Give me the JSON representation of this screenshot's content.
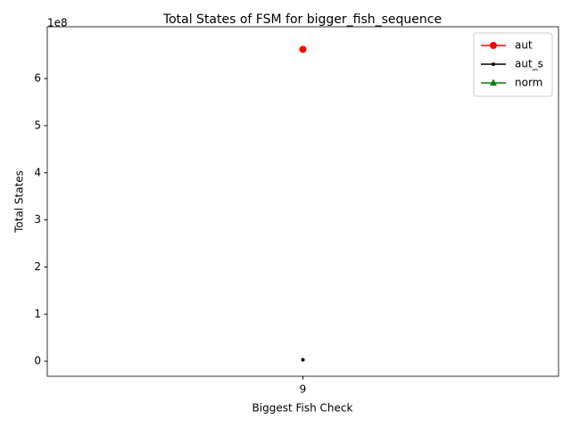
{
  "chart_data": {
    "type": "line",
    "title": "Total States of FSM for bigger_fish_sequence",
    "x_label": "Biggest Fish Check",
    "y_label": "Total States",
    "y_offset_label": "1e8",
    "x": [
      9
    ],
    "xlim": [
      8.945,
      9.055
    ],
    "xticks": [
      9
    ],
    "ylim": [
      -32000000,
      710000000
    ],
    "yticks": [
      {
        "value": 0,
        "label": "0"
      },
      {
        "value": 100000000,
        "label": "1"
      },
      {
        "value": 200000000,
        "label": "2"
      },
      {
        "value": 300000000,
        "label": "3"
      },
      {
        "value": 400000000,
        "label": "4"
      },
      {
        "value": 500000000,
        "label": "5"
      },
      {
        "value": 600000000,
        "label": "6"
      }
    ],
    "legend": "upper right",
    "series": [
      {
        "name": "aut",
        "color": "#ff0000",
        "marker": "circle",
        "values": [
          662000000
        ]
      },
      {
        "name": "aut_s",
        "color": "#000000",
        "marker": "dot",
        "values": [
          3000000
        ]
      },
      {
        "name": "norm",
        "color": "#008000",
        "marker": "triangle",
        "values": [
          null
        ]
      }
    ]
  }
}
